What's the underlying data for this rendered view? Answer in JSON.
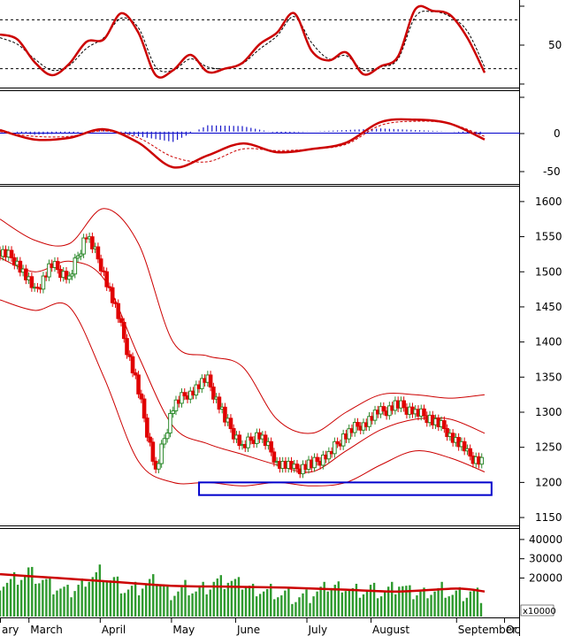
{
  "colors": {
    "up": "#2e8b2e",
    "down": "#e00000",
    "bands": "#cc0000",
    "ma": "#e00000",
    "macd_hist": "#1515c8",
    "box": "#0000cc",
    "grid": "#000000",
    "volume": "#2e9a2e"
  },
  "chart_data": [
    {
      "type": "line",
      "name": "stochastic-oscillator",
      "ylim": [
        0,
        100
      ],
      "yticks": [
        "50"
      ],
      "guide_levels": [
        80,
        20
      ],
      "series": [
        {
          "style": "solid-red",
          "x": [
            0,
            1,
            2,
            3,
            4,
            5,
            6,
            7,
            8,
            9,
            10,
            11,
            12,
            13,
            14,
            15,
            16,
            17,
            18,
            19,
            20,
            21,
            22,
            23,
            24,
            25,
            26,
            27,
            28
          ],
          "y": [
            62,
            56,
            28,
            12,
            26,
            53,
            56,
            88,
            64,
            12,
            18,
            37,
            16,
            20,
            27,
            50,
            64,
            88,
            42,
            30,
            40,
            13,
            23,
            35,
            93,
            91,
            86,
            58,
            15
          ]
        },
        {
          "style": "dashed-black",
          "x": [
            0,
            1,
            2,
            3,
            4,
            5,
            6,
            7,
            8,
            9,
            10,
            11,
            12,
            13,
            14,
            15,
            16,
            17,
            18,
            19,
            20,
            21,
            22,
            23,
            24,
            25,
            26,
            27,
            28
          ],
          "y": [
            58,
            50,
            32,
            18,
            24,
            45,
            58,
            82,
            70,
            22,
            18,
            32,
            22,
            20,
            26,
            44,
            60,
            84,
            52,
            32,
            36,
            18,
            22,
            32,
            84,
            90,
            84,
            66,
            22
          ]
        }
      ]
    },
    {
      "type": "line",
      "name": "macd",
      "ylim": [
        -65,
        50
      ],
      "yticks": [
        "0",
        "-50"
      ],
      "series": [
        {
          "style": "macd-line",
          "x": [
            0,
            2,
            4,
            6,
            8,
            10,
            12,
            14,
            16,
            18,
            20,
            22,
            24,
            26,
            28
          ],
          "y": [
            2,
            -10,
            -8,
            3,
            -14,
            -45,
            -30,
            -15,
            -26,
            -22,
            -14,
            12,
            15,
            10,
            -10
          ]
        },
        {
          "style": "signal-line",
          "x": [
            0,
            2,
            4,
            6,
            8,
            10,
            12,
            14,
            16,
            18,
            20,
            22,
            24,
            26,
            28
          ],
          "y": [
            0,
            -6,
            -6,
            1,
            -8,
            -32,
            -38,
            -22,
            -24,
            -22,
            -16,
            8,
            13,
            10,
            -6
          ]
        },
        {
          "style": "histogram",
          "x": [
            0,
            2,
            4,
            6,
            8,
            10,
            12,
            14,
            16,
            18,
            20,
            22,
            24,
            26,
            28
          ],
          "y": [
            2,
            -4,
            -2,
            2,
            -6,
            -13,
            8,
            7,
            -2,
            0,
            2,
            4,
            2,
            0,
            -4
          ]
        }
      ]
    },
    {
      "type": "line",
      "name": "price-bollinger",
      "ylim": [
        1140,
        1620
      ],
      "yticks": [
        "1600",
        "1550",
        "1500",
        "1450",
        "1400",
        "1350",
        "1300",
        "1250",
        "1200",
        "1150"
      ],
      "series": [
        {
          "style": "price",
          "x": [
            0,
            1,
            2,
            3,
            4,
            5,
            6,
            7,
            8,
            9,
            10,
            11,
            12,
            13,
            14,
            15,
            16,
            17,
            18,
            19,
            20,
            21,
            22,
            23,
            24,
            25,
            26,
            27,
            28
          ],
          "y": [
            1530,
            1515,
            1470,
            1510,
            1490,
            1555,
            1500,
            1420,
            1330,
            1215,
            1310,
            1330,
            1345,
            1290,
            1250,
            1270,
            1230,
            1218,
            1225,
            1240,
            1270,
            1285,
            1300,
            1310,
            1300,
            1290,
            1270,
            1240,
            1225
          ]
        },
        {
          "style": "band-upper",
          "x": [
            0,
            2,
            4,
            6,
            8,
            10,
            12,
            14,
            16,
            18,
            20,
            22,
            24,
            26,
            28
          ],
          "y": [
            1575,
            1545,
            1540,
            1590,
            1540,
            1400,
            1380,
            1365,
            1290,
            1270,
            1300,
            1325,
            1325,
            1320,
            1325
          ]
        },
        {
          "style": "band-middle",
          "x": [
            0,
            2,
            4,
            6,
            8,
            10,
            12,
            14,
            16,
            18,
            20,
            22,
            24,
            26,
            28
          ],
          "y": [
            1520,
            1500,
            1515,
            1490,
            1380,
            1280,
            1255,
            1240,
            1225,
            1215,
            1245,
            1275,
            1290,
            1290,
            1270
          ]
        },
        {
          "style": "band-lower",
          "x": [
            0,
            2,
            4,
            6,
            8,
            10,
            12,
            14,
            16,
            18,
            20,
            22,
            24,
            26,
            28
          ],
          "y": [
            1460,
            1445,
            1450,
            1350,
            1230,
            1200,
            1200,
            1195,
            1200,
            1195,
            1200,
            1225,
            1245,
            1235,
            1215
          ]
        }
      ],
      "annotations": [
        {
          "type": "rectangle",
          "x0": 11.5,
          "x1": 28.4,
          "y0": 1182,
          "y1": 1200
        }
      ]
    },
    {
      "type": "bar",
      "name": "volume",
      "ylim": [
        0,
        45000
      ],
      "yticks": [
        "40000",
        "30000",
        "20000"
      ],
      "unit_label": "x10000",
      "x_month_labels": [
        "ary",
        "March",
        "April",
        "May",
        "June",
        "July",
        "August",
        "September",
        "Oc"
      ],
      "month_x": [
        0,
        2,
        7,
        12,
        16.5,
        21.5,
        26,
        32,
        36.5
      ],
      "series": [
        {
          "style": "volume-bars",
          "x": [
            0,
            1,
            2,
            3,
            4,
            5,
            6,
            7,
            8,
            9,
            10,
            11,
            12,
            13,
            14,
            15,
            16,
            17,
            18,
            19,
            20,
            21,
            22,
            23,
            24,
            25,
            26,
            27,
            28,
            29,
            30,
            31,
            32,
            33,
            34
          ],
          "y": [
            18000,
            20000,
            24000,
            19000,
            15000,
            13000,
            20000,
            24000,
            19000,
            14000,
            16000,
            20000,
            13000,
            16000,
            14000,
            18000,
            19000,
            17000,
            15000,
            14000,
            12000,
            10000,
            12000,
            16000,
            17000,
            14000,
            15000,
            13000,
            17000,
            12000,
            14000,
            15000,
            12000,
            13000,
            11000
          ]
        },
        {
          "style": "volume-ma",
          "x": [
            0,
            4,
            8,
            12,
            16,
            20,
            24,
            28,
            32,
            34
          ],
          "y": [
            22000,
            20000,
            18000,
            16000,
            15500,
            15000,
            14000,
            13000,
            14500,
            13000
          ]
        }
      ]
    }
  ]
}
